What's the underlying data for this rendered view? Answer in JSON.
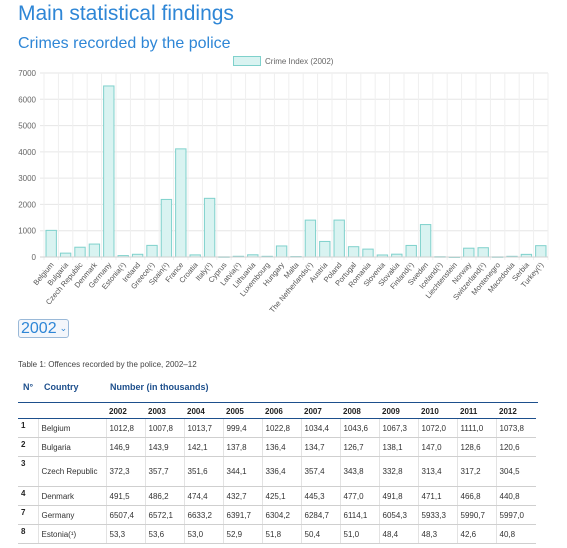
{
  "page": {
    "title": "Main statistical findings",
    "subtitle": "Crimes recorded by the police"
  },
  "year_select": {
    "value": "2002"
  },
  "table": {
    "caption": "Table 1: Offences recorded by the police, 2002–12",
    "col_no": "N°",
    "col_country": "Country",
    "col_number": "Number (in thousands)",
    "years": [
      "2002",
      "2003",
      "2004",
      "2005",
      "2006",
      "2007",
      "2008",
      "2009",
      "2010",
      "2011",
      "2012"
    ],
    "rows": [
      {
        "no": "1",
        "country": "Belgium",
        "values": [
          "1012,8",
          "1007,8",
          "1013,7",
          "999,4",
          "1022,8",
          "1034,4",
          "1043,6",
          "1067,3",
          "1072,0",
          "1111,0",
          "1073,8"
        ]
      },
      {
        "no": "2",
        "country": "Bulgaria",
        "values": [
          "146,9",
          "143,9",
          "142,1",
          "137,8",
          "136,4",
          "134,7",
          "126,7",
          "138,1",
          "147,0",
          "128,6",
          "120,6"
        ]
      },
      {
        "no": "3",
        "country": "Czech Republic",
        "values": [
          "372,3",
          "357,7",
          "351,6",
          "344,1",
          "336,4",
          "357,4",
          "343,8",
          "332,8",
          "313,4",
          "317,2",
          "304,5"
        ]
      },
      {
        "no": "4",
        "country": "Denmark",
        "values": [
          "491,5",
          "486,2",
          "474,4",
          "432,7",
          "425,1",
          "445,3",
          "477,0",
          "491,8",
          "471,1",
          "466,8",
          "440,8"
        ]
      },
      {
        "no": "7",
        "country": "Germany",
        "values": [
          "6507,4",
          "6572,1",
          "6633,2",
          "6391,7",
          "6304,2",
          "6284,7",
          "6114,1",
          "6054,3",
          "5933,3",
          "5990,7",
          "5997,0"
        ]
      },
      {
        "no": "8",
        "country": "Estonia(¹)",
        "values": [
          "53,3",
          "53,6",
          "53,0",
          "52,9",
          "51,8",
          "50,4",
          "51,0",
          "48,4",
          "48,3",
          "42,6",
          "40,8"
        ]
      }
    ]
  },
  "chart_data": {
    "type": "bar",
    "legend": "Crime Index (2002)",
    "legend_position": "top",
    "grid": true,
    "ylim": [
      0,
      7000
    ],
    "yticks": [
      "0",
      "1000",
      "2000",
      "3000",
      "4000",
      "5000",
      "6000",
      "7000"
    ],
    "colors": {
      "fill": "#d9f3f1",
      "stroke": "#7fd1cc"
    },
    "categories": [
      "Belgium",
      "Bulgaria",
      "Czech Republic",
      "Denmark",
      "Germany",
      "Estonia(¹)",
      "Ireland",
      "Greece(¹)",
      "Spain(¹)",
      "France",
      "Croatia",
      "Italy(¹)",
      "Cyprus",
      "Latvia(¹)",
      "Lithuania",
      "Luxembourg",
      "Hungary",
      "Malta",
      "The Netherlands(¹)",
      "Austria",
      "Poland",
      "Portugal",
      "Romania",
      "Slovenia",
      "Slovakia",
      "Finland(¹)",
      "Sweden",
      "Iceland(¹)",
      "Liechtenstein",
      "Norway",
      "Switzerland(¹)",
      "Montenegro",
      "Macedonia",
      "Serbia",
      "Turkey(¹)"
    ],
    "values": [
      1013,
      147,
      372,
      492,
      6507,
      53,
      103,
      442,
      2190,
      4114,
      80,
      2232,
      7,
      27,
      84,
      26,
      420,
      17,
      1403,
      592,
      1404,
      392,
      300,
      77,
      107,
      440,
      1234,
      12,
      1,
      335,
      353,
      6,
      26,
      100,
      431
    ]
  }
}
